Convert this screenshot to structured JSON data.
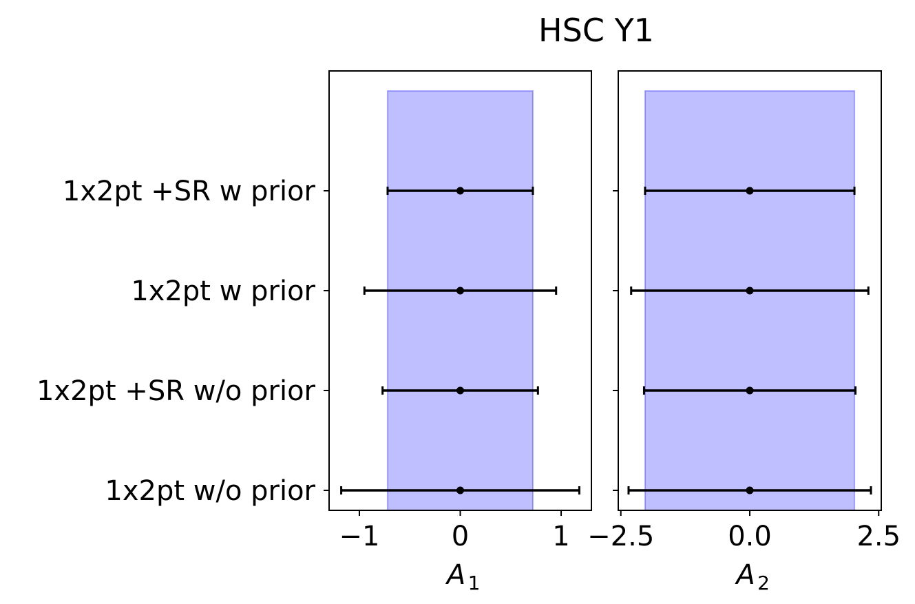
{
  "chart_data": {
    "title": "HSC Y1",
    "type": "errorbar",
    "categories": [
      "1x2pt +SR w prior",
      "1x2pt w prior",
      "1x2pt +SR w/o prior",
      "1x2pt w/o prior"
    ],
    "band_color": "#0000ff",
    "panels": [
      {
        "xlabel": "A",
        "xlabel_sub": "1",
        "xlim": [
          -1.3,
          1.3
        ],
        "xticks": [
          -1,
          0,
          1
        ],
        "xtick_labels": [
          "−1",
          "0",
          "1"
        ],
        "band": [
          -0.72,
          0.72
        ],
        "points": [
          {
            "category": "1x2pt +SR w prior",
            "value": 0.0,
            "low": -0.72,
            "high": 0.72
          },
          {
            "category": "1x2pt w prior",
            "value": 0.0,
            "low": -0.95,
            "high": 0.95
          },
          {
            "category": "1x2pt +SR w/o prior",
            "value": 0.0,
            "low": -0.77,
            "high": 0.77
          },
          {
            "category": "1x2pt w/o prior",
            "value": 0.0,
            "low": -1.18,
            "high": 1.18
          }
        ]
      },
      {
        "xlabel": "A",
        "xlabel_sub": "2",
        "xlim": [
          -2.55,
          2.55
        ],
        "xticks": [
          -2.5,
          0.0,
          2.5
        ],
        "xtick_labels": [
          "−2.5",
          "0.0",
          "2.5"
        ],
        "band": [
          -2.03,
          2.03
        ],
        "points": [
          {
            "category": "1x2pt +SR w prior",
            "value": 0.0,
            "low": -2.03,
            "high": 2.03
          },
          {
            "category": "1x2pt w prior",
            "value": 0.0,
            "low": -2.3,
            "high": 2.3
          },
          {
            "category": "1x2pt +SR w/o prior",
            "value": 0.0,
            "low": -2.05,
            "high": 2.05
          },
          {
            "category": "1x2pt w/o prior",
            "value": 0.0,
            "low": -2.35,
            "high": 2.35
          }
        ]
      }
    ]
  }
}
